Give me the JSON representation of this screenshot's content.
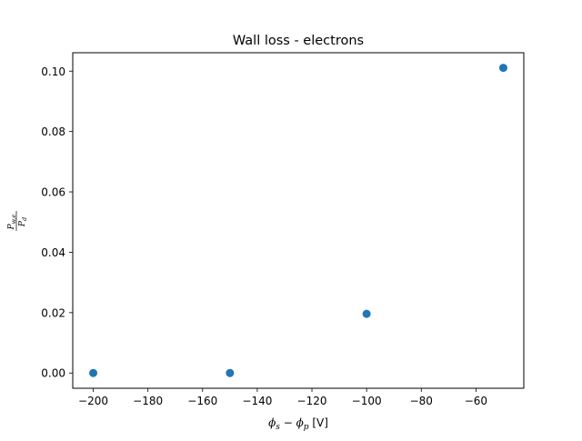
{
  "chart_data": {
    "type": "scatter",
    "title": "Wall loss - electrons",
    "xlabel": {
      "main": "ϕ",
      "sub1": "s",
      "minus": " − ",
      "main2": "ϕ",
      "sub2": "p",
      "unit": " [V]"
    },
    "ylabel": {
      "numerator": "P",
      "numerator_sub": "w,e",
      "denominator": "P",
      "denominator_sub": "d"
    },
    "xlim": [
      -207.5,
      -42.5
    ],
    "ylim": [
      -0.00505,
      0.1061
    ],
    "x_ticks": [
      -200,
      -180,
      -160,
      -140,
      -120,
      -100,
      -80,
      -60
    ],
    "x_tick_labels": [
      "−200",
      "−180",
      "−160",
      "−140",
      "−120",
      "−100",
      "−80",
      "−60"
    ],
    "y_ticks": [
      0.0,
      0.02,
      0.04,
      0.06,
      0.08,
      0.1
    ],
    "y_tick_labels": [
      "0.00",
      "0.02",
      "0.04",
      "0.06",
      "0.08",
      "0.10"
    ],
    "grid": false,
    "series": [
      {
        "color": "#1f77b4",
        "x": [
          -200,
          -150,
          -100,
          -50
        ],
        "y": [
          0.0,
          0.0,
          0.0196,
          0.1011
        ]
      }
    ]
  }
}
